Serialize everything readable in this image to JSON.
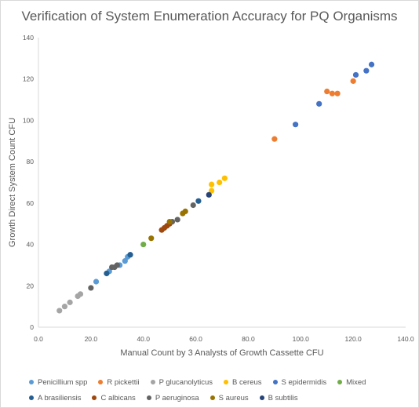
{
  "chart_data": {
    "type": "scatter",
    "title": "Verification of System Enumeration Accuracy for PQ Organisms",
    "xlabel": "Manual Count by 3 Analysts of Growth Cassette CFU",
    "ylabel": "Growth Direct System Count CFU",
    "xlim": [
      0,
      140
    ],
    "ylim": [
      0,
      140
    ],
    "x_ticks": [
      "0.0",
      "20.0",
      "40.0",
      "60.0",
      "80.0",
      "100.0",
      "120.0",
      "140.0"
    ],
    "y_ticks": [
      "0",
      "20",
      "40",
      "60",
      "80",
      "100",
      "120",
      "140"
    ],
    "grid": false,
    "legend_position": "bottom",
    "series": [
      {
        "name": "Penicillium spp",
        "color": "#5b9bd5",
        "points": [
          [
            22,
            22
          ],
          [
            27,
            27
          ],
          [
            31,
            30
          ],
          [
            33,
            32
          ],
          [
            34,
            34
          ],
          [
            35,
            35
          ]
        ]
      },
      {
        "name": "R pickettii",
        "color": "#ed7d31",
        "points": [
          [
            90,
            91
          ],
          [
            110,
            114
          ],
          [
            112,
            113
          ],
          [
            114,
            113
          ],
          [
            120,
            119
          ]
        ]
      },
      {
        "name": "P glucanolyticus",
        "color": "#a5a5a5",
        "points": [
          [
            8,
            8
          ],
          [
            10,
            10
          ],
          [
            12,
            12
          ],
          [
            15,
            15
          ],
          [
            16,
            16
          ]
        ]
      },
      {
        "name": "B cereus",
        "color": "#ffc000",
        "points": [
          [
            66,
            66
          ],
          [
            66,
            69
          ],
          [
            69,
            70
          ],
          [
            71,
            72
          ]
        ]
      },
      {
        "name": "S epidermidis",
        "color": "#4472c4",
        "points": [
          [
            98,
            98
          ],
          [
            107,
            108
          ],
          [
            121,
            122
          ],
          [
            125,
            124
          ],
          [
            127,
            127
          ]
        ]
      },
      {
        "name": "Mixed",
        "color": "#70ad47",
        "points": [
          [
            40,
            40
          ]
        ]
      },
      {
        "name": "A brasiliensis",
        "color": "#255e91",
        "points": [
          [
            26,
            26
          ],
          [
            35,
            35
          ],
          [
            61,
            61
          ]
        ]
      },
      {
        "name": "C albicans",
        "color": "#9e480e",
        "points": [
          [
            47,
            47
          ],
          [
            48,
            48
          ],
          [
            49,
            49
          ],
          [
            50,
            50
          ]
        ]
      },
      {
        "name": "P aeruginosa",
        "color": "#636363",
        "points": [
          [
            20,
            19
          ],
          [
            28,
            29
          ],
          [
            29,
            29
          ],
          [
            30,
            30
          ],
          [
            51,
            51
          ],
          [
            53,
            52
          ],
          [
            59,
            59
          ]
        ]
      },
      {
        "name": "S aureus",
        "color": "#997300",
        "points": [
          [
            43,
            43
          ],
          [
            50,
            51
          ],
          [
            55,
            55
          ],
          [
            56,
            56
          ]
        ]
      },
      {
        "name": "B subtilis",
        "color": "#264478",
        "points": [
          [
            65,
            64
          ]
        ]
      }
    ]
  }
}
